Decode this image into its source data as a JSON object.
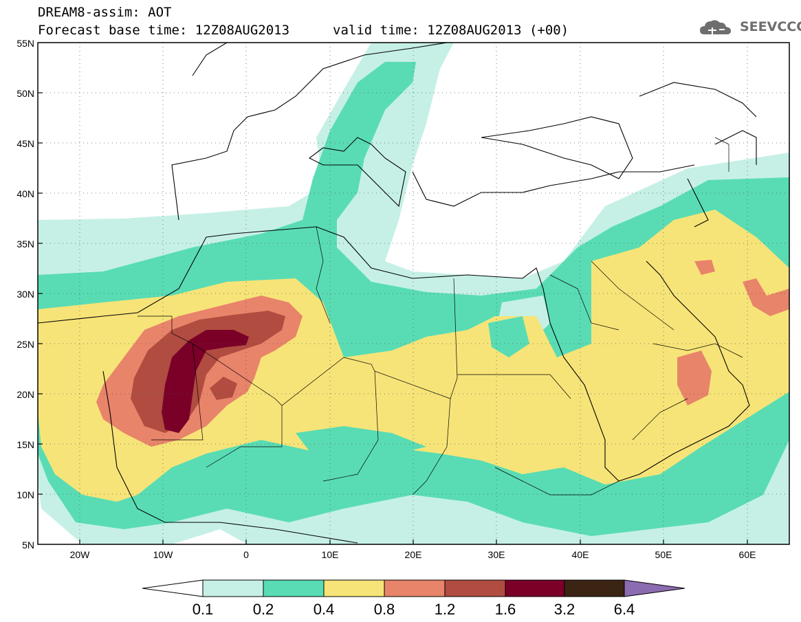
{
  "title": {
    "line1": "DREAM8-assim: AOT",
    "line2": "Forecast base time: 12Z08AUG2013",
    "valid": "valid time: 12Z08AUG2013 (+00)"
  },
  "logo": {
    "text": "SEEVCCC",
    "icon": "cloud-icon"
  },
  "axes": {
    "lat_labels": [
      "55N",
      "50N",
      "45N",
      "40N",
      "35N",
      "30N",
      "25N",
      "20N",
      "15N",
      "10N",
      "5N"
    ],
    "lon_labels": [
      "20W",
      "10W",
      "0",
      "10E",
      "20E",
      "30E",
      "40E",
      "50E",
      "60E"
    ],
    "lat_range": [
      5,
      55
    ],
    "lon_range": [
      -25,
      65
    ]
  },
  "legend": {
    "levels": [
      "0.1",
      "0.2",
      "0.4",
      "0.8",
      "1.2",
      "1.6",
      "3.2",
      "6.4"
    ],
    "colors": {
      "0.1-0.2": "#c6f0e6",
      "0.2-0.4": "#59dcb4",
      "0.4-0.8": "#f7e478",
      "0.8-1.2": "#e8846a",
      "1.2-1.6": "#b14c40",
      "1.6-3.2": "#7a0028",
      "3.2-6.4": "#3c2414",
      ">6.4": "#8c6cb0"
    }
  }
}
